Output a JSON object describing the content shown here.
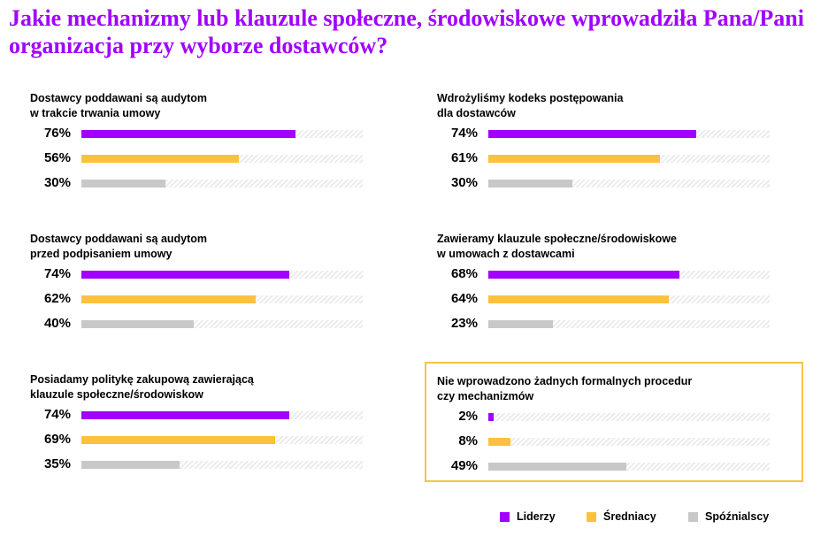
{
  "chart_data": {
    "type": "bar",
    "title": "Jakie mechanizmy lub klauzule społeczne, środowiskowe wprowadziła Pana/Pani organizacja przy wyborze dostawców?",
    "series_names": [
      "Liderzy",
      "Średniacy",
      "Spóźnialscy"
    ],
    "colors": [
      "#a100ff",
      "#fcc13f",
      "#c8c8c8"
    ],
    "highlight_color": "#f5c542",
    "xlim": [
      0,
      100
    ],
    "panels": [
      {
        "label_lines": [
          "Dostawcy poddawani są audytom",
          "w trakcie trwania umowy"
        ],
        "values": [
          76,
          56,
          30
        ],
        "value_labels": [
          "76%",
          "56%",
          "30%"
        ]
      },
      {
        "label_lines": [
          "Wdrożyliśmy kodeks postępowania",
          "dla dostawców"
        ],
        "values": [
          74,
          61,
          30
        ],
        "value_labels": [
          "74%",
          "61%",
          "30%"
        ]
      },
      {
        "label_lines": [
          "Dostawcy poddawani są audytom",
          "przed podpisaniem umowy"
        ],
        "values": [
          74,
          62,
          40
        ],
        "value_labels": [
          "74%",
          "62%",
          "40%"
        ]
      },
      {
        "label_lines": [
          "Zawieramy klauzule społeczne/środowiskowe",
          "w umowach z dostawcami"
        ],
        "values": [
          68,
          64,
          23
        ],
        "value_labels": [
          "68%",
          "64%",
          "23%"
        ]
      },
      {
        "label_lines": [
          "Posiadamy politykę zakupową zawierającą",
          "klauzule społeczne/środowiskow"
        ],
        "values": [
          74,
          69,
          35
        ],
        "value_labels": [
          "74%",
          "69%",
          "35%"
        ]
      },
      {
        "label_lines": [
          "Nie wprowadzono żadnych formalnych procedur",
          "czy mechanizmów"
        ],
        "values": [
          2,
          8,
          49
        ],
        "value_labels": [
          "2%",
          "8%",
          "49%"
        ],
        "highlighted": true
      }
    ]
  }
}
